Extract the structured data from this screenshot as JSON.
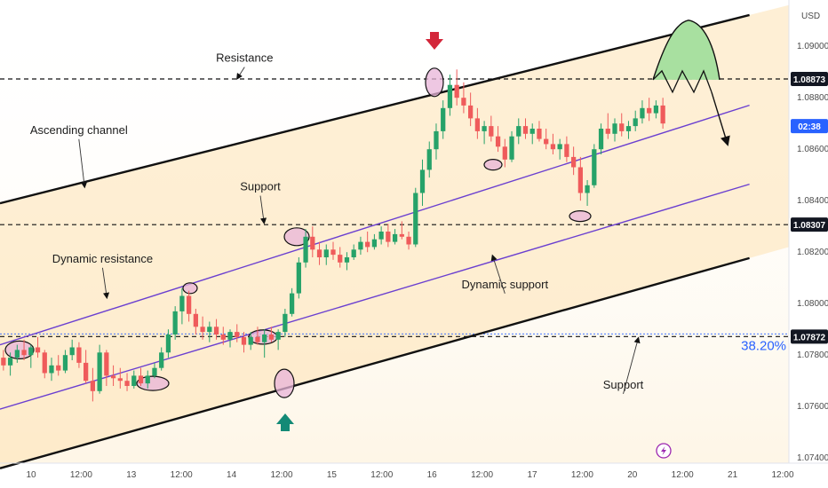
{
  "chart_data": {
    "type": "candlestick",
    "currency": "USD",
    "colors": {
      "bull": "#26a269",
      "bear": "#ef5b5b",
      "channel_fill": "#fde2b3",
      "channel_lines": "#111111",
      "inner_lines": "#6a3fd0",
      "levels": "#111111",
      "price_badge": "#131722",
      "time_badge": "#2962ff",
      "fib_label": "#2962ff",
      "highlight": "#e8b4d8",
      "projection": "#a8e0a0",
      "arrow_down": "#d3263a",
      "arrow_up": "#138a76"
    },
    "y_axis": {
      "range": [
        1.0738,
        1.0918
      ],
      "ticks": [
        "1.09000",
        "1.08800",
        "1.08600",
        "1.08400",
        "1.08200",
        "1.08000",
        "1.07800",
        "1.07600",
        "1.07400"
      ]
    },
    "x_axis": {
      "ticks": [
        "10",
        "12:00",
        "13",
        "12:00",
        "14",
        "12:00",
        "15",
        "12:00",
        "16",
        "12:00",
        "17",
        "12:00",
        "20",
        "12:00",
        "21",
        "12:00"
      ]
    },
    "levels": [
      {
        "price": 1.08873,
        "label": "1.08873"
      },
      {
        "price": 1.08307,
        "label": "1.08307"
      },
      {
        "price": 1.07872,
        "label": "1.07872"
      }
    ],
    "time_badge": "02:38",
    "fib_label": "38.20%",
    "channel": {
      "upper": [
        [
          0,
          1.0839
        ],
        [
          1,
          1.0916
        ]
      ],
      "lower": [
        [
          0,
          1.0736
        ],
        [
          1,
          1.0822
        ]
      ]
    },
    "inner_lines": {
      "dynamic_resistance": [
        [
          0,
          1.0784
        ],
        [
          1,
          1.0882
        ]
      ],
      "dynamic_support": [
        [
          0,
          1.0759
        ],
        [
          1,
          1.0851
        ]
      ]
    },
    "candles_ohlc": [
      [
        1.0779,
        1.0782,
        1.0774,
        1.0776
      ],
      [
        1.0776,
        1.0781,
        1.0772,
        1.0779
      ],
      [
        1.0779,
        1.0784,
        1.0777,
        1.0782
      ],
      [
        1.0782,
        1.0786,
        1.0778,
        1.078
      ],
      [
        1.078,
        1.0784,
        1.0775,
        1.0783
      ],
      [
        1.0783,
        1.0787,
        1.0779,
        1.0781
      ],
      [
        1.0781,
        1.0782,
        1.0771,
        1.0773
      ],
      [
        1.0773,
        1.0779,
        1.077,
        1.0776
      ],
      [
        1.0776,
        1.078,
        1.0772,
        1.0774
      ],
      [
        1.0774,
        1.0782,
        1.0773,
        1.078
      ],
      [
        1.078,
        1.0786,
        1.0778,
        1.0783
      ],
      [
        1.0783,
        1.0785,
        1.0775,
        1.0777
      ],
      [
        1.0777,
        1.0782,
        1.0769,
        1.077
      ],
      [
        1.077,
        1.0775,
        1.0762,
        1.0766
      ],
      [
        1.0766,
        1.0784,
        1.0765,
        1.0781
      ],
      [
        1.0781,
        1.0782,
        1.0768,
        1.0772
      ],
      [
        1.0772,
        1.0776,
        1.0768,
        1.0771
      ],
      [
        1.0771,
        1.0775,
        1.0767,
        1.077
      ],
      [
        1.077,
        1.0773,
        1.0766,
        1.0768
      ],
      [
        1.0768,
        1.0774,
        1.0767,
        1.0772
      ],
      [
        1.0772,
        1.0775,
        1.0768,
        1.0769
      ],
      [
        1.0769,
        1.0774,
        1.0767,
        1.0772
      ],
      [
        1.0772,
        1.0777,
        1.0771,
        1.0775
      ],
      [
        1.0775,
        1.0783,
        1.0774,
        1.0781
      ],
      [
        1.0781,
        1.079,
        1.0779,
        1.0788
      ],
      [
        1.0788,
        1.0799,
        1.0786,
        1.0797
      ],
      [
        1.0797,
        1.0806,
        1.0792,
        1.0803
      ],
      [
        1.0803,
        1.0805,
        1.0793,
        1.0796
      ],
      [
        1.0796,
        1.0798,
        1.0788,
        1.0791
      ],
      [
        1.0791,
        1.0795,
        1.0786,
        1.0789
      ],
      [
        1.0789,
        1.0793,
        1.0785,
        1.0791
      ],
      [
        1.0791,
        1.0794,
        1.0786,
        1.0788
      ],
      [
        1.0788,
        1.0791,
        1.0784,
        1.0786
      ],
      [
        1.0786,
        1.079,
        1.0783,
        1.0789
      ],
      [
        1.0789,
        1.0792,
        1.0785,
        1.0787
      ],
      [
        1.0787,
        1.0789,
        1.0781,
        1.0784
      ],
      [
        1.0784,
        1.0789,
        1.0782,
        1.0787
      ],
      [
        1.0787,
        1.0791,
        1.0784,
        1.0785
      ],
      [
        1.0785,
        1.079,
        1.0779,
        1.0788
      ],
      [
        1.0788,
        1.0791,
        1.0785,
        1.0786
      ],
      [
        1.0786,
        1.079,
        1.0782,
        1.0789
      ],
      [
        1.0789,
        1.0798,
        1.0787,
        1.0796
      ],
      [
        1.0796,
        1.0806,
        1.0795,
        1.0804
      ],
      [
        1.0804,
        1.0818,
        1.0802,
        1.0816
      ],
      [
        1.0816,
        1.0829,
        1.0814,
        1.0826
      ],
      [
        1.0826,
        1.083,
        1.0818,
        1.0821
      ],
      [
        1.0821,
        1.0824,
        1.0815,
        1.0818
      ],
      [
        1.0818,
        1.0823,
        1.0815,
        1.0821
      ],
      [
        1.0821,
        1.0824,
        1.0817,
        1.0819
      ],
      [
        1.0819,
        1.0822,
        1.0814,
        1.0816
      ],
      [
        1.0816,
        1.082,
        1.0813,
        1.0818
      ],
      [
        1.0818,
        1.0823,
        1.0817,
        1.0821
      ],
      [
        1.0821,
        1.0826,
        1.0819,
        1.0824
      ],
      [
        1.0824,
        1.0828,
        1.082,
        1.0822
      ],
      [
        1.0822,
        1.0827,
        1.0821,
        1.0825
      ],
      [
        1.0825,
        1.083,
        1.0823,
        1.0828
      ],
      [
        1.0828,
        1.0831,
        1.0822,
        1.0824
      ],
      [
        1.0824,
        1.0829,
        1.0823,
        1.0827
      ],
      [
        1.0827,
        1.0832,
        1.0825,
        1.0826
      ],
      [
        1.0826,
        1.0828,
        1.0821,
        1.0823
      ],
      [
        1.0823,
        1.0845,
        1.0822,
        1.0843
      ],
      [
        1.0843,
        1.0856,
        1.0838,
        1.0852
      ],
      [
        1.0852,
        1.0863,
        1.0849,
        1.086
      ],
      [
        1.086,
        1.087,
        1.0856,
        1.0867
      ],
      [
        1.0867,
        1.0879,
        1.0864,
        1.0876
      ],
      [
        1.0876,
        1.0889,
        1.0873,
        1.0885
      ],
      [
        1.0885,
        1.0891,
        1.0877,
        1.088
      ],
      [
        1.088,
        1.0886,
        1.0874,
        1.0877
      ],
      [
        1.0877,
        1.0882,
        1.0869,
        1.0872
      ],
      [
        1.0872,
        1.0876,
        1.0864,
        1.0867
      ],
      [
        1.0867,
        1.0871,
        1.0862,
        1.0869
      ],
      [
        1.0869,
        1.0873,
        1.0863,
        1.0865
      ],
      [
        1.0865,
        1.0869,
        1.0859,
        1.0861
      ],
      [
        1.0861,
        1.0864,
        1.0853,
        1.0856
      ],
      [
        1.0856,
        1.0867,
        1.0855,
        1.0865
      ],
      [
        1.0865,
        1.0872,
        1.0862,
        1.0869
      ],
      [
        1.0869,
        1.0872,
        1.0864,
        1.0866
      ],
      [
        1.0866,
        1.087,
        1.0862,
        1.0868
      ],
      [
        1.0868,
        1.0871,
        1.0863,
        1.0864
      ],
      [
        1.0864,
        1.0868,
        1.086,
        1.0862
      ],
      [
        1.0862,
        1.0866,
        1.0858,
        1.086
      ],
      [
        1.086,
        1.0864,
        1.0856,
        1.0862
      ],
      [
        1.0862,
        1.0865,
        1.0855,
        1.0857
      ],
      [
        1.0857,
        1.0861,
        1.085,
        1.0853
      ],
      [
        1.0853,
        1.0857,
        1.084,
        1.0843
      ],
      [
        1.0843,
        1.0848,
        1.0838,
        1.0846
      ],
      [
        1.0846,
        1.0862,
        1.0845,
        1.086
      ],
      [
        1.086,
        1.087,
        1.0858,
        1.0868
      ],
      [
        1.0868,
        1.0874,
        1.0864,
        1.0866
      ],
      [
        1.0866,
        1.0872,
        1.0863,
        1.087
      ],
      [
        1.087,
        1.0874,
        1.0865,
        1.0867
      ],
      [
        1.0867,
        1.0871,
        1.0864,
        1.0869
      ],
      [
        1.0869,
        1.0875,
        1.0867,
        1.0872
      ],
      [
        1.0872,
        1.0879,
        1.087,
        1.0876
      ],
      [
        1.0876,
        1.088,
        1.0871,
        1.0874
      ],
      [
        1.0874,
        1.0879,
        1.0872,
        1.0877
      ],
      [
        1.0877,
        1.088,
        1.0868,
        1.087
      ]
    ],
    "annotations": [
      {
        "text": "Resistance",
        "price": 1.0894,
        "fx": 0.31
      },
      {
        "text": "Ascending channel",
        "price": 1.0866,
        "fx": 0.1
      },
      {
        "text": "Support",
        "price": 1.0844,
        "fx": 0.33
      },
      {
        "text": "Dynamic resistance",
        "price": 1.0816,
        "fx": 0.13
      },
      {
        "text": "Dynamic support",
        "price": 1.0806,
        "fx": 0.64
      },
      {
        "text": "Support",
        "price": 1.0767,
        "fx": 0.79
      }
    ]
  }
}
